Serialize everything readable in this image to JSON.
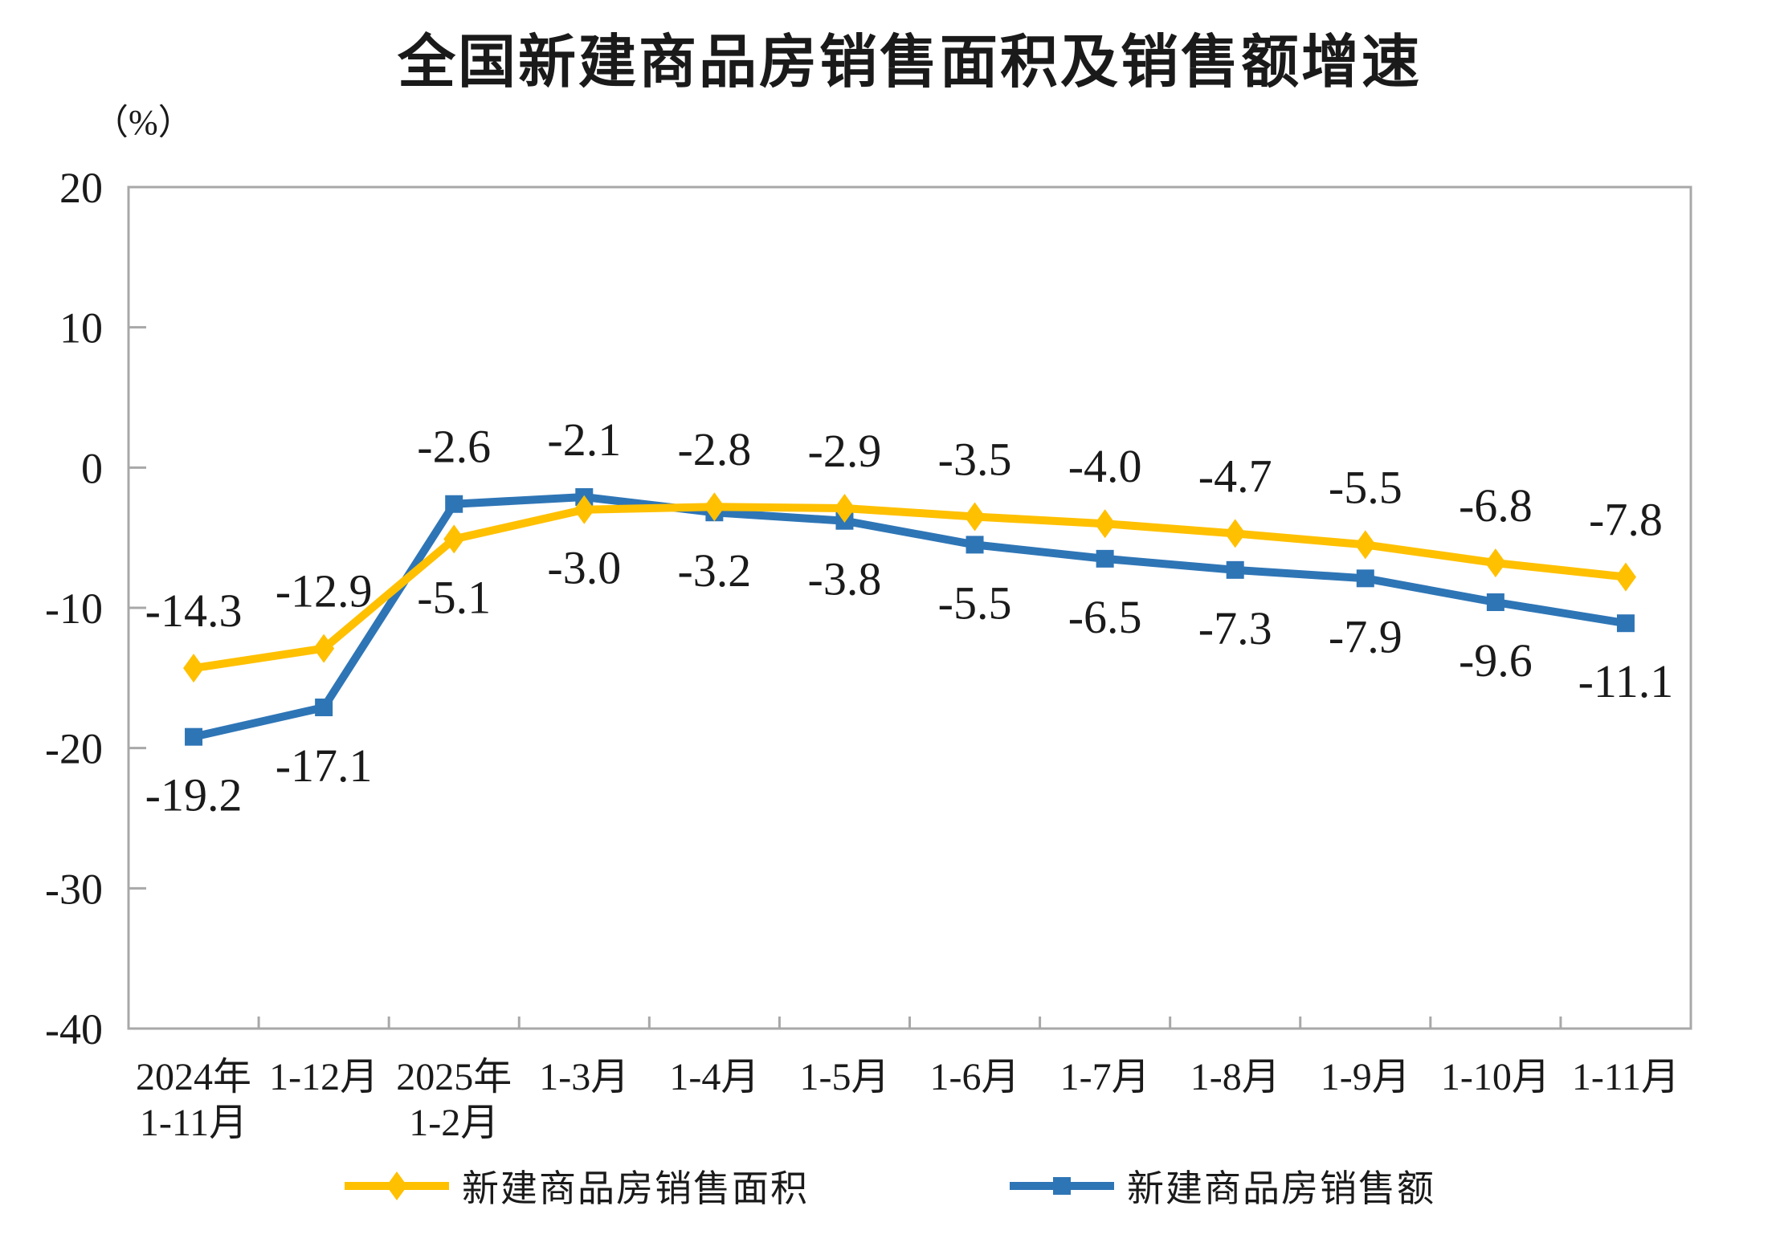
{
  "page": {
    "background": "#ffffff",
    "text_color": "#1a1a1a",
    "axis_color": "#a8a8a8"
  },
  "chart_data": {
    "type": "line",
    "title": "全国新建商品房销售面积及销售额增速",
    "unit_label": "（%）",
    "categories": [
      [
        "2024年",
        "1-11月"
      ],
      [
        "1-12月"
      ],
      [
        "2025年",
        "1-2月"
      ],
      [
        "1-3月"
      ],
      [
        "1-4月"
      ],
      [
        "1-5月"
      ],
      [
        "1-6月"
      ],
      [
        "1-7月"
      ],
      [
        "1-8月"
      ],
      [
        "1-9月"
      ],
      [
        "1-10月"
      ],
      [
        "1-11月"
      ]
    ],
    "ylim": [
      -40,
      20
    ],
    "yticks": [
      20,
      10,
      0,
      -10,
      -20,
      -30,
      -40
    ],
    "grid": false,
    "legend_position": "bottom-center",
    "series": [
      {
        "name": "新建商品房销售面积",
        "color": "#FFC000",
        "marker": "diamond",
        "values": [
          -14.3,
          -12.9,
          -5.1,
          -3.0,
          -2.8,
          -2.9,
          -3.5,
          -4.0,
          -4.7,
          -5.5,
          -6.8,
          -7.8
        ],
        "label_sides": [
          "above",
          "above",
          "below",
          "below",
          "above",
          "above",
          "above",
          "above",
          "above",
          "above",
          "above",
          "above"
        ]
      },
      {
        "name": "新建商品房销售额",
        "color": "#2E75B6",
        "marker": "square",
        "values": [
          -19.2,
          -17.1,
          -2.6,
          -2.1,
          -3.2,
          -3.8,
          -5.5,
          -6.5,
          -7.3,
          -7.9,
          -9.6,
          -11.1
        ],
        "label_sides": [
          "below",
          "below",
          "above",
          "above",
          "below",
          "below",
          "below",
          "below",
          "below",
          "below",
          "below",
          "below"
        ]
      }
    ]
  }
}
